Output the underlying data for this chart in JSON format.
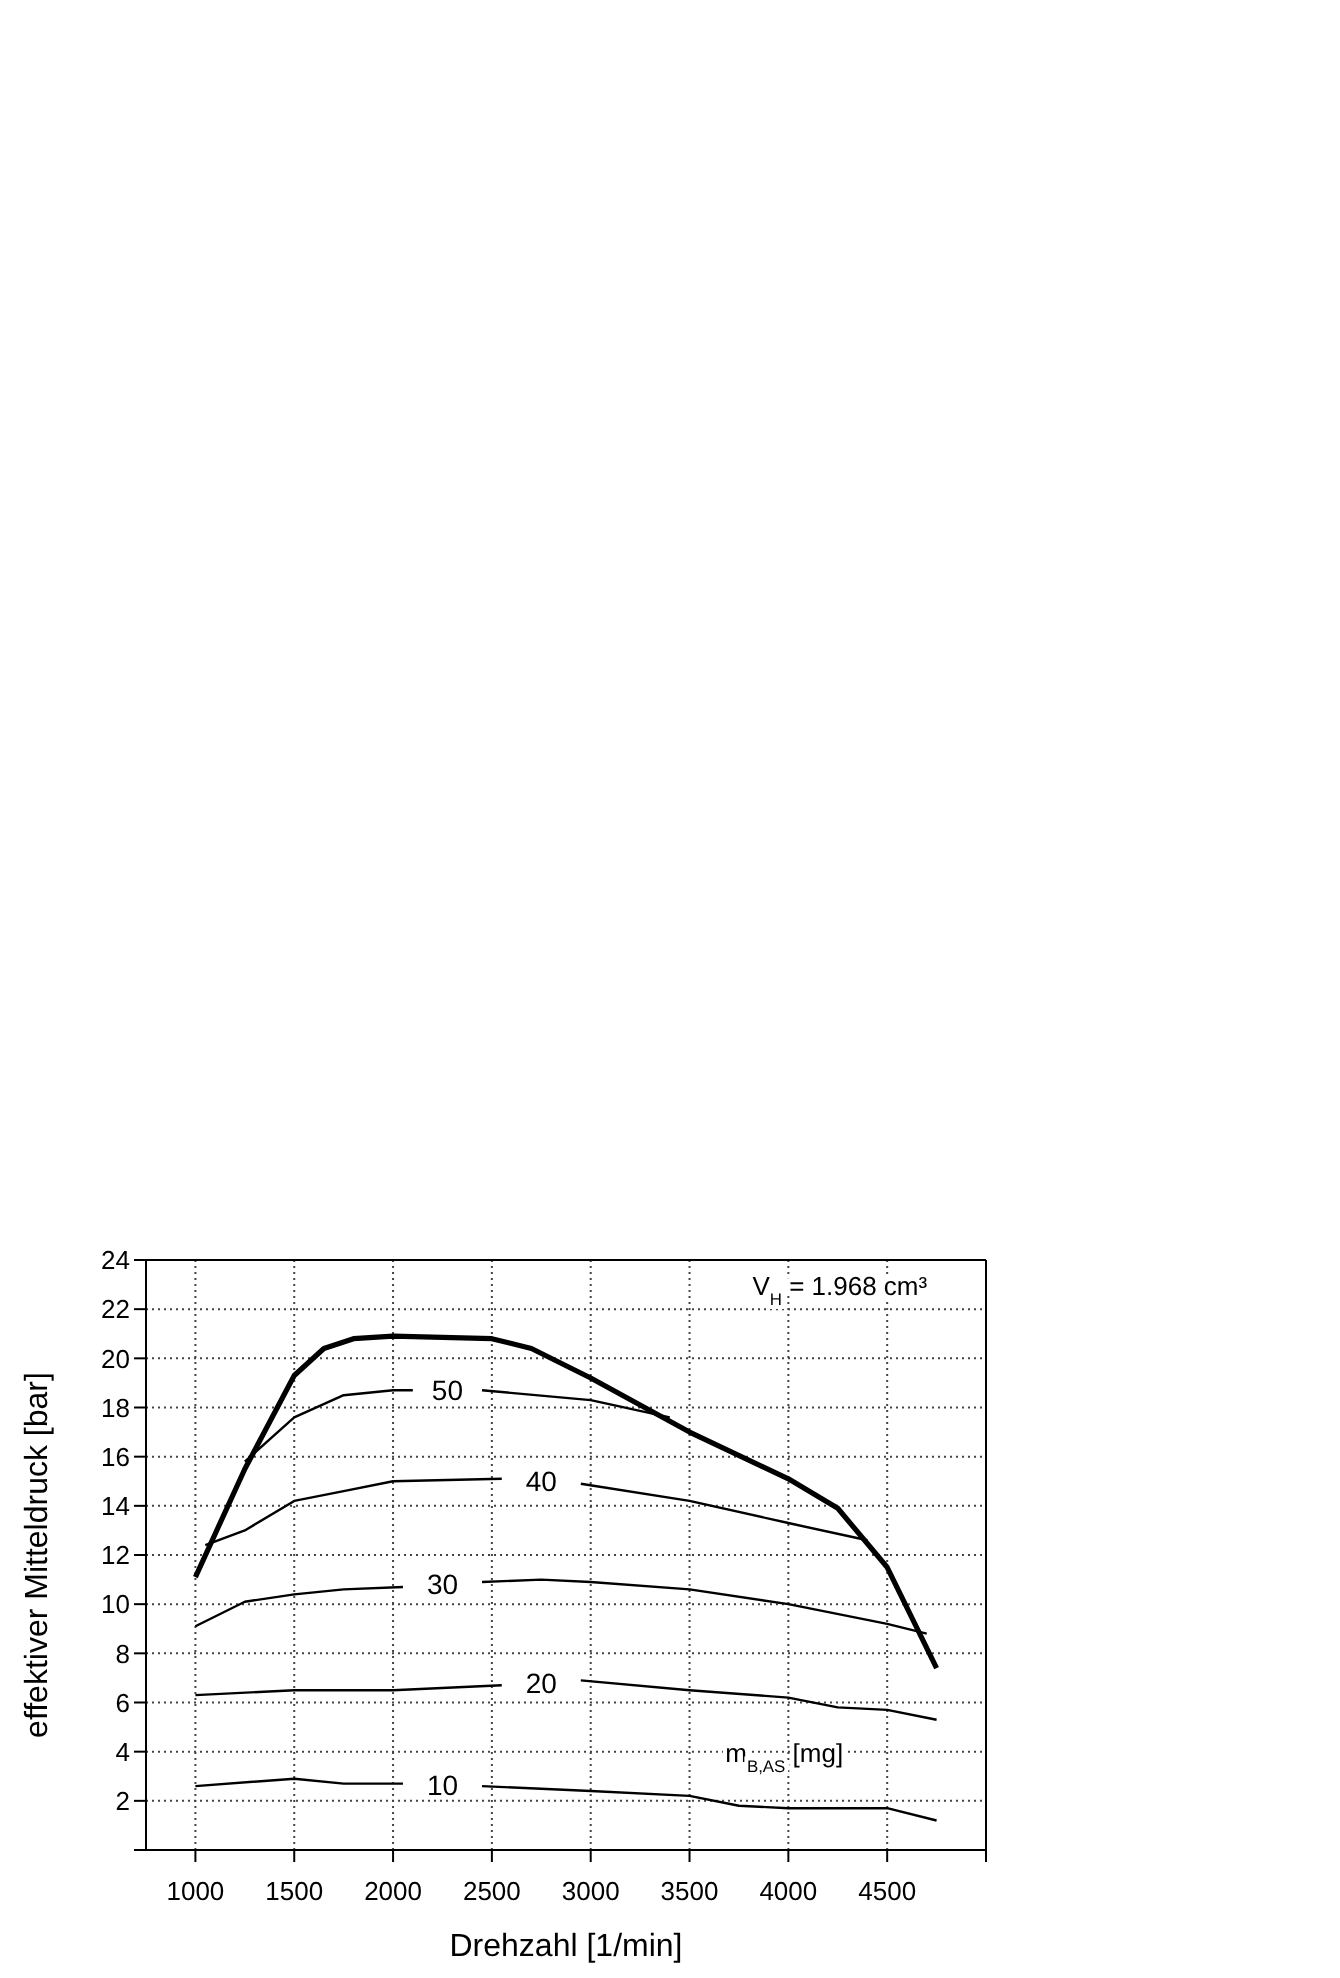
{
  "chart_data": {
    "type": "line",
    "xlabel": "Drehzahl [1/min]",
    "ylabel": "effektiver Mitteldruck [bar]",
    "xlim": [
      750,
      5000
    ],
    "xticks": [
      1000,
      1500,
      2000,
      2500,
      3000,
      3500,
      4000,
      4500,
      {
        "value": 5000,
        "label": null
      }
    ],
    "ylim": [
      0,
      24
    ],
    "yticks": [
      {
        "value": 0,
        "label": null
      },
      2,
      4,
      6,
      8,
      10,
      12,
      14,
      16,
      18,
      20,
      22,
      24
    ],
    "grid": true,
    "legend": false,
    "marker": "none",
    "line_style": "solid",
    "annotations": [
      "V$_{H}$ = 1.968 cm³",
      "m$_{B,AS}$ [mg]"
    ],
    "series": [
      {
        "color": "#000000",
        "x": [
          1000,
          1250,
          1500,
          1650,
          1800,
          2000,
          2500,
          2700,
          3000,
          3500,
          4000,
          4250,
          4500,
          4750
        ],
        "values": [
          11.1,
          15.5,
          19.3,
          20.4,
          20.8,
          20.9,
          20.8,
          20.4,
          19.2,
          17.0,
          15.1,
          13.9,
          11.5,
          7.4
        ]
      },
      {
        "name": "50",
        "color": "#000000",
        "x": [
          1250,
          1500,
          1750,
          2000,
          2100,
          2280,
          2450,
          3000,
          3400
        ],
        "values": [
          15.8,
          17.6,
          18.5,
          18.7,
          18.7,
          null,
          18.7,
          18.3,
          17.6
        ]
      },
      {
        "name": "40",
        "color": "#000000",
        "x": [
          1050,
          1250,
          1500,
          1750,
          2000,
          2550,
          2750,
          2950,
          3500,
          4000,
          4400
        ],
        "values": [
          12.4,
          13.0,
          14.2,
          14.6,
          15.0,
          15.1,
          null,
          14.9,
          14.2,
          13.3,
          12.6
        ]
      },
      {
        "name": "30",
        "color": "#000000",
        "x": [
          1000,
          1250,
          1500,
          1750,
          2050,
          2250,
          2450,
          2750,
          3000,
          3500,
          4000,
          4500,
          4700
        ],
        "values": [
          9.1,
          10.1,
          10.4,
          10.6,
          10.7,
          null,
          10.9,
          11.0,
          10.9,
          10.6,
          10.0,
          9.2,
          8.8
        ]
      },
      {
        "name": "20",
        "color": "#000000",
        "x": [
          1000,
          1500,
          2000,
          2550,
          2750,
          2950,
          3500,
          4000,
          4250,
          4500,
          4750
        ],
        "values": [
          6.3,
          6.5,
          6.5,
          6.7,
          null,
          6.9,
          6.5,
          6.2,
          5.8,
          5.7,
          5.3
        ]
      },
      {
        "name": "10",
        "color": "#000000",
        "x": [
          1000,
          1500,
          1750,
          2050,
          2250,
          2450,
          3000,
          3500,
          3750,
          4000,
          4500,
          4750
        ],
        "values": [
          2.6,
          2.9,
          2.7,
          2.7,
          null,
          2.6,
          2.4,
          2.2,
          1.8,
          1.7,
          1.7,
          1.2
        ]
      }
    ]
  }
}
